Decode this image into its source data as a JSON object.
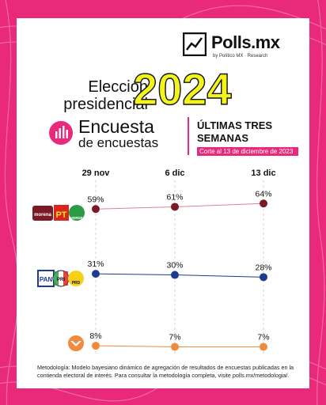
{
  "brand": {
    "name": "Polls.mx",
    "byline": "by Político MX · Research"
  },
  "header": {
    "title_line1": "Elección",
    "title_line2": "presidencial",
    "year": "2024"
  },
  "subheader": {
    "line1": "Encuesta",
    "line2": "de encuestas",
    "weeks_line1": "ÚLTIMAS TRES",
    "weeks_line2": "SEMANAS",
    "cutoff": "Corte al 13 de diciembre de 2023"
  },
  "chart_data": {
    "type": "line",
    "categories": [
      "29 nov",
      "6 dic",
      "13 dic"
    ],
    "ylim": [
      0,
      100
    ],
    "grid": "vertical-dashed",
    "series": [
      {
        "name": "MORENA-PT-VERDE",
        "values": [
          59,
          61,
          64
        ],
        "labels": [
          "59%",
          "61%",
          "64%"
        ],
        "line_color": "#d9858d",
        "marker_color": "#7b1a27"
      },
      {
        "name": "PAN-PRI-PRD",
        "values": [
          31,
          30,
          28
        ],
        "labels": [
          "31%",
          "30%",
          "28%"
        ],
        "line_color": "#1f3a93",
        "marker_color": "#1f3a93"
      },
      {
        "name": "MC",
        "values": [
          8,
          7,
          7
        ],
        "labels": [
          "8%",
          "7%",
          "7%"
        ],
        "line_color": "#f08a3c",
        "marker_color": "#f08a3c"
      }
    ]
  },
  "party_labels": {
    "morena": "morena",
    "pt": "PT",
    "verde": "VERDE",
    "pan": "PAN",
    "pri": "PRI",
    "prd": "PRD"
  },
  "footer": {
    "methodology": "Metodología: Modelo bayesiano dinámico de agregación de resultados de encuestas publicadas en la contienda electoral de interés. Para consultar la metodología completa, visite polls.mx/metodologia/."
  },
  "colors": {
    "accent": "#e9297a",
    "year_fill": "#f2f41c"
  }
}
